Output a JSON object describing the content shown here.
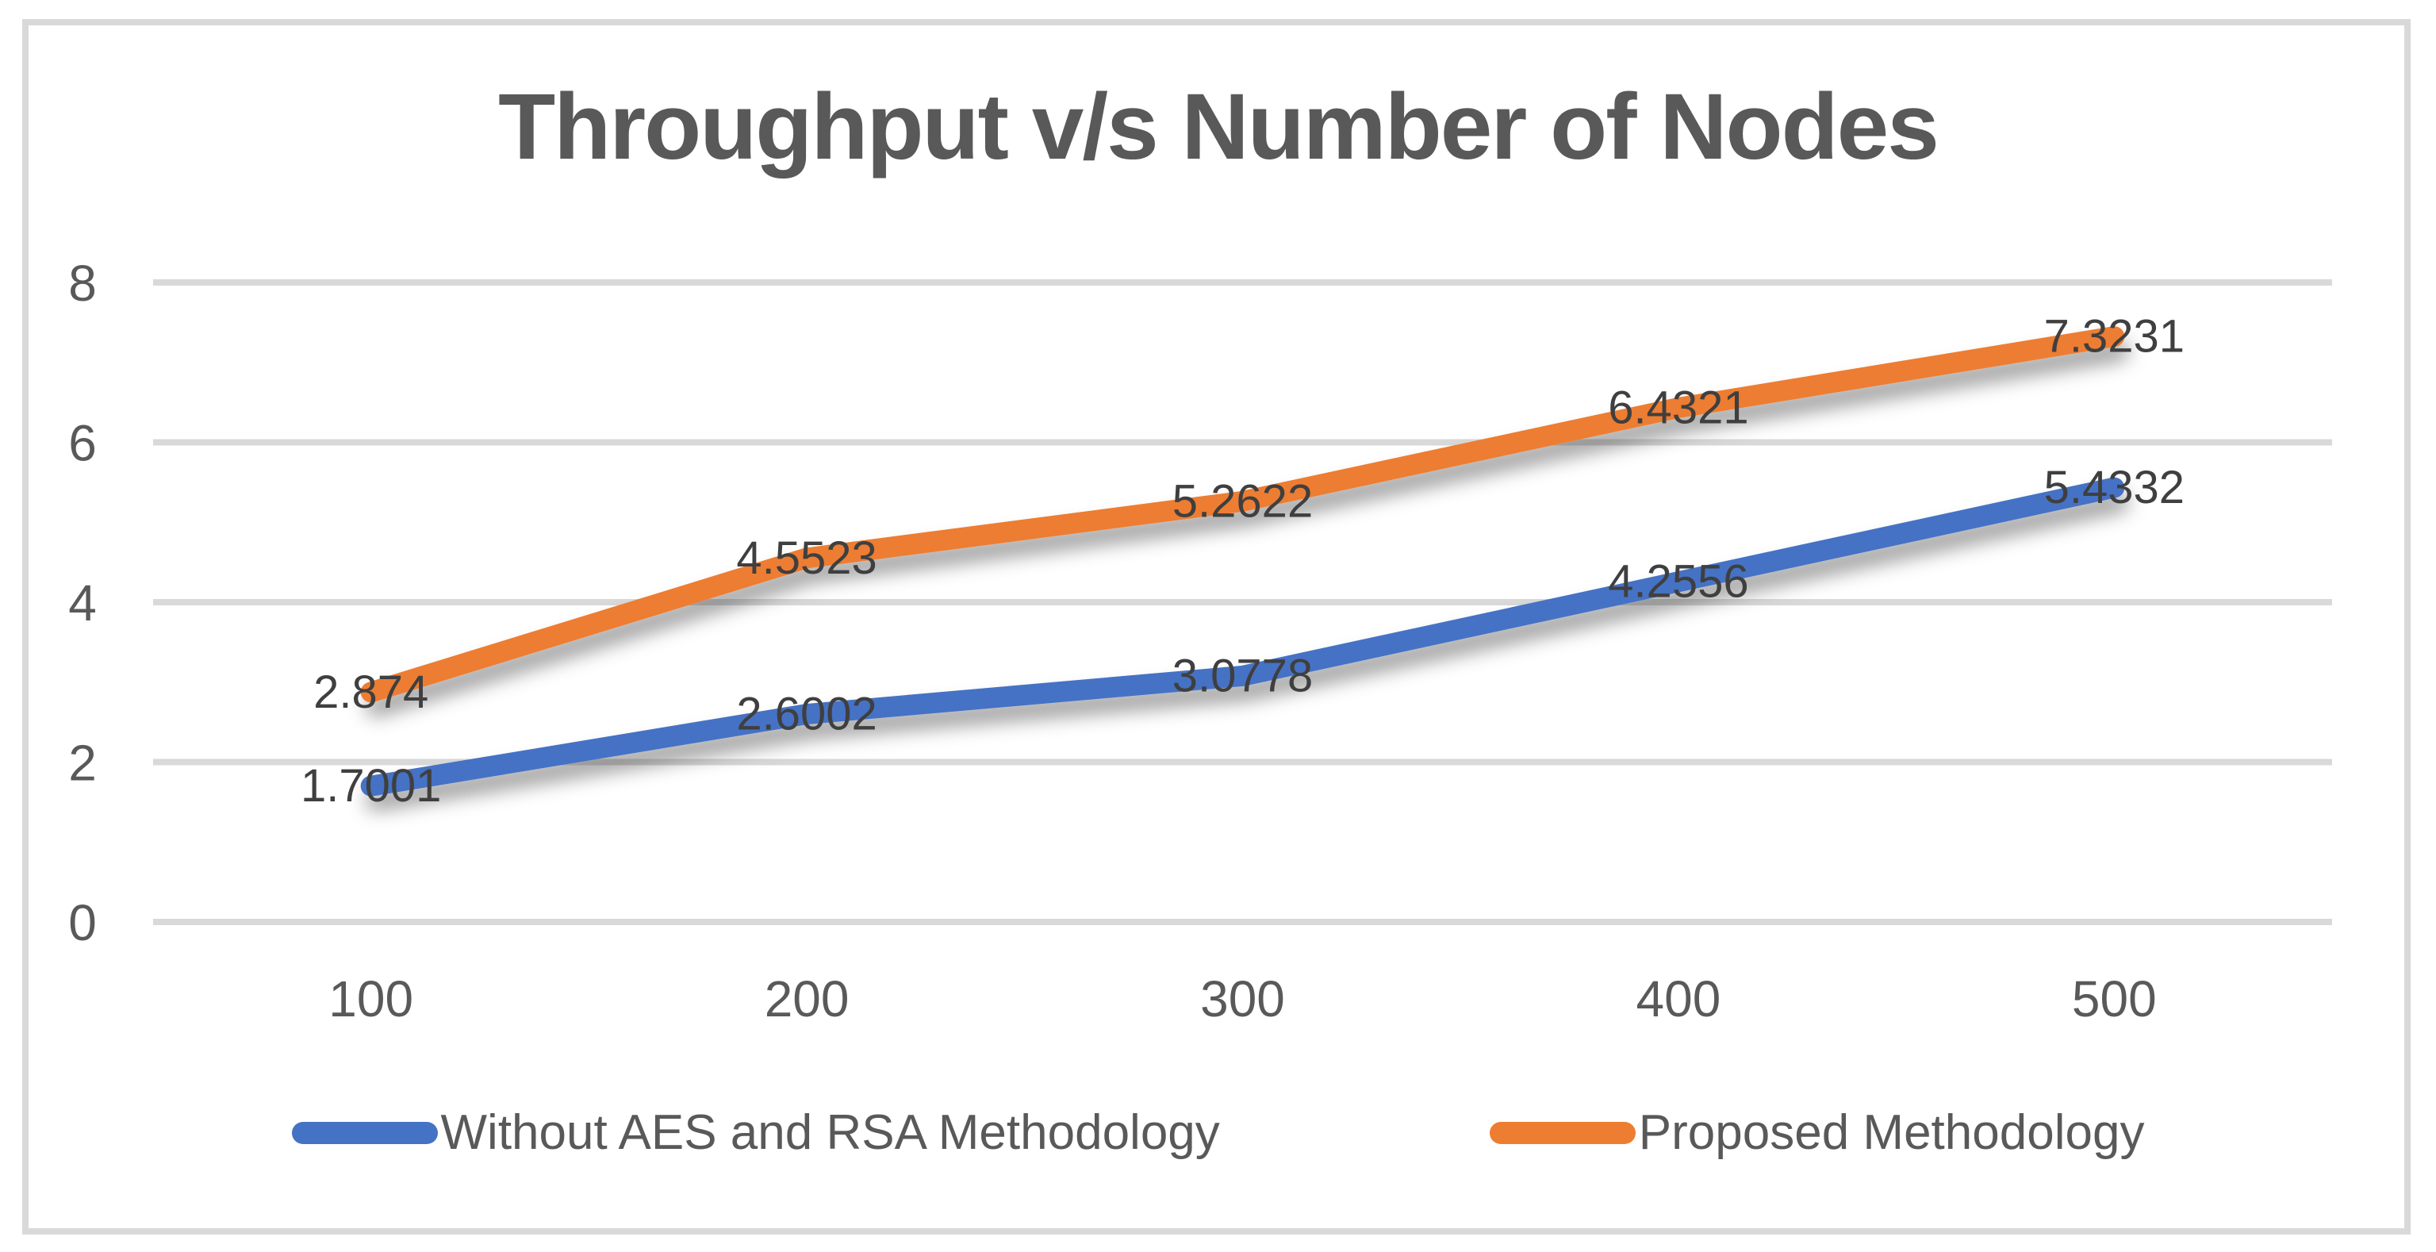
{
  "chart_data": {
    "type": "line",
    "title": "Throughput v/s Number of Nodes",
    "categories": [
      "100",
      "200",
      "300",
      "400",
      "500"
    ],
    "series": [
      {
        "name": "Without AES and RSA Methodology",
        "color": "#4472C4",
        "values": [
          1.7001,
          2.6002,
          3.0778,
          4.2556,
          5.4332
        ]
      },
      {
        "name": "Proposed Methodology",
        "color": "#ED7D31",
        "values": [
          2.874,
          4.5523,
          5.2622,
          6.4321,
          7.3231
        ]
      }
    ],
    "xlabel": "",
    "ylabel": "",
    "ylim": [
      0,
      8
    ],
    "yticks": [
      0,
      2,
      4,
      6,
      8
    ],
    "grid": true,
    "data_labels": true,
    "legend_position": "bottom"
  },
  "colors": {
    "gridline": "#D9D9D9",
    "chart_border": "#D9D9D9",
    "axis_text": "#595959",
    "title_text": "#595959",
    "data_label_text": "#3f3f3f",
    "background": "#ffffff"
  }
}
